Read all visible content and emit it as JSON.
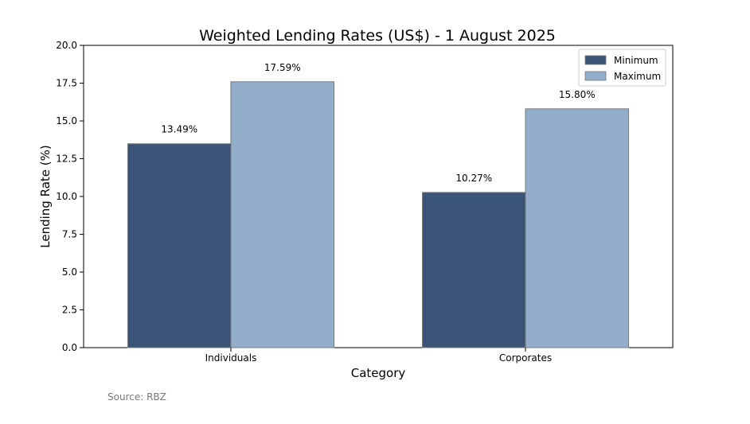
{
  "source_note": "Source: RBZ",
  "chart_data": {
    "type": "bar",
    "title": "Weighted Lending Rates (US$) - 1 August 2025",
    "xlabel": "Category",
    "ylabel": "Lending Rate (%)",
    "categories": [
      "Individuals",
      "Corporates"
    ],
    "series": [
      {
        "name": "Minimum",
        "values": [
          13.49,
          10.27
        ],
        "color": "#3a5577",
        "labels": [
          "13.49%",
          "10.27%"
        ]
      },
      {
        "name": "Maximum",
        "values": [
          17.59,
          15.8
        ],
        "color": "#93aecb",
        "labels": [
          "17.59%",
          "15.80%"
        ]
      }
    ],
    "ylim": [
      0,
      20
    ],
    "yticks": [
      "0.0",
      "2.5",
      "5.0",
      "7.5",
      "10.0",
      "12.5",
      "15.0",
      "17.5",
      "20.0"
    ],
    "grid": false,
    "legend_position": "top-right"
  }
}
